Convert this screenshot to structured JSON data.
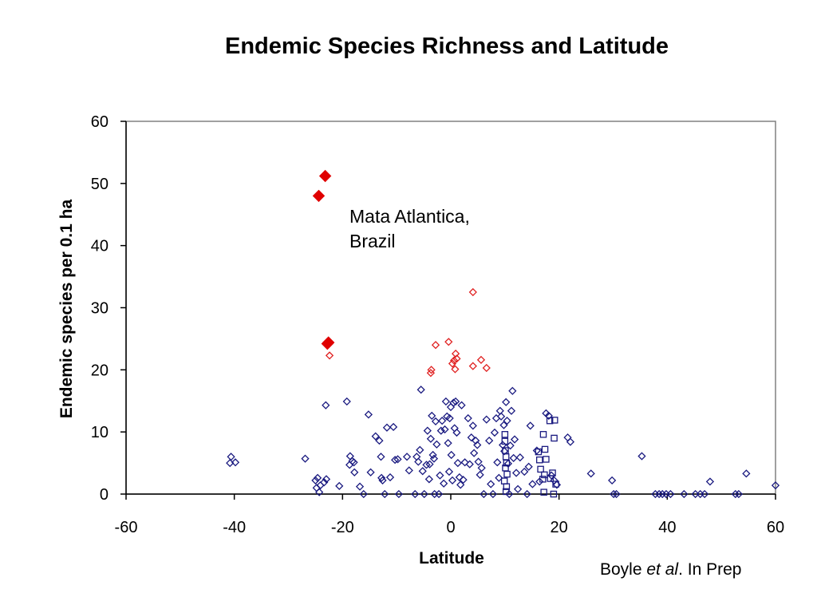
{
  "chart_data": {
    "type": "scatter",
    "title": "Endemic Species Richness and Latitude",
    "xlabel": "Latitude",
    "ylabel": "Endemic species per 0.1 ha",
    "xlim": [
      -60,
      60
    ],
    "ylim": [
      0,
      60
    ],
    "x_ticks": [
      "-60",
      "-40",
      "-20",
      "0",
      "20",
      "40",
      "60"
    ],
    "y_ticks": [
      "0",
      "10",
      "20",
      "30",
      "40",
      "50",
      "60"
    ],
    "grid": false,
    "legend": "none",
    "annotation": [
      "Mata Atlantica,",
      "Brazil"
    ],
    "credit": {
      "author": "Boyle",
      "etal": "et al",
      "rest": ". In Prep"
    },
    "colors": {
      "highlight": "#e00000",
      "blue": "#1a1a80",
      "red": "#e02020",
      "axis": "#000000",
      "frame": "#808080"
    },
    "series": [
      {
        "marker": "diamond-filled",
        "color": "#e00000",
        "points": [
          [
            -23.2,
            51.2
          ],
          [
            -24.4,
            48.0
          ],
          [
            -22.8,
            24.2
          ],
          [
            -22.6,
            24.4
          ]
        ]
      },
      {
        "marker": "diamond-open",
        "color": "#e02020",
        "points": [
          [
            -22.4,
            22.3
          ],
          [
            -3.7,
            19.5
          ],
          [
            -3.6,
            20.0
          ],
          [
            -2.8,
            24.0
          ],
          [
            -0.4,
            24.5
          ],
          [
            0.3,
            21.0
          ],
          [
            0.6,
            21.5
          ],
          [
            0.9,
            22.6
          ],
          [
            1.1,
            21.8
          ],
          [
            0.8,
            20.1
          ],
          [
            4.1,
            20.6
          ],
          [
            5.6,
            21.6
          ],
          [
            6.6,
            20.3
          ],
          [
            4.1,
            32.5
          ]
        ]
      },
      {
        "marker": "square-open",
        "color": "#1a1a80",
        "points": [
          [
            10.0,
            9.6
          ],
          [
            10.0,
            8.5
          ],
          [
            10.1,
            7.0
          ],
          [
            10.2,
            6.0
          ],
          [
            10.3,
            5.0
          ],
          [
            10.1,
            4.2
          ],
          [
            10.4,
            3.2
          ],
          [
            9.9,
            2.1
          ],
          [
            10.3,
            1.2
          ],
          [
            10.2,
            0.4
          ],
          [
            16.2,
            6.8
          ],
          [
            16.4,
            5.5
          ],
          [
            16.6,
            4.0
          ],
          [
            17.1,
            9.6
          ],
          [
            17.4,
            7.2
          ],
          [
            17.6,
            5.6
          ],
          [
            17.3,
            3.1
          ],
          [
            17.0,
            2.4
          ],
          [
            17.2,
            0.3
          ],
          [
            18.3,
            11.8
          ],
          [
            19.2,
            11.9
          ],
          [
            19.1,
            9.0
          ],
          [
            18.8,
            3.4
          ],
          [
            18.4,
            2.5
          ],
          [
            19.4,
            1.6
          ],
          [
            19.0,
            0.0
          ]
        ]
      },
      {
        "marker": "diamond-open",
        "color": "#1a1a80",
        "points": [
          [
            -40.6,
            6.0
          ],
          [
            -40.8,
            5.0
          ],
          [
            -39.8,
            5.1
          ],
          [
            -26.9,
            5.7
          ],
          [
            -25.0,
            2.2
          ],
          [
            -24.6,
            2.6
          ],
          [
            -24.8,
            1.0
          ],
          [
            -24.1,
            1.4
          ],
          [
            -24.3,
            0.3
          ],
          [
            -23.4,
            1.9
          ],
          [
            -23.1,
            14.3
          ],
          [
            -23.0,
            2.4
          ],
          [
            -20.6,
            1.3
          ],
          [
            -19.2,
            14.9
          ],
          [
            -18.6,
            6.1
          ],
          [
            -18.7,
            4.7
          ],
          [
            -17.9,
            5.1
          ],
          [
            -18.2,
            5.3
          ],
          [
            -17.8,
            3.5
          ],
          [
            -16.8,
            1.2
          ],
          [
            -16.1,
            0.0
          ],
          [
            -15.2,
            12.8
          ],
          [
            -14.8,
            3.5
          ],
          [
            -13.9,
            9.3
          ],
          [
            -13.2,
            8.6
          ],
          [
            -12.9,
            6.0
          ],
          [
            -12.8,
            2.6
          ],
          [
            -12.6,
            2.2
          ],
          [
            -12.2,
            0.0
          ],
          [
            -11.8,
            10.7
          ],
          [
            -11.2,
            2.7
          ],
          [
            -10.6,
            10.8
          ],
          [
            -10.3,
            5.5
          ],
          [
            -9.8,
            5.6
          ],
          [
            -9.6,
            0.0
          ],
          [
            -8.1,
            6.0
          ],
          [
            -7.7,
            3.8
          ],
          [
            -6.6,
            0.0
          ],
          [
            -6.3,
            6.0
          ],
          [
            -6.0,
            5.2
          ],
          [
            -5.7,
            7.1
          ],
          [
            -5.5,
            16.8
          ],
          [
            -5.2,
            3.7
          ],
          [
            -4.9,
            0.0
          ],
          [
            -4.5,
            4.7
          ],
          [
            -4.3,
            10.2
          ],
          [
            -4.0,
            2.4
          ],
          [
            -3.9,
            4.8
          ],
          [
            -3.7,
            8.9
          ],
          [
            -3.5,
            12.6
          ],
          [
            -3.3,
            6.3
          ],
          [
            -3.1,
            5.7
          ],
          [
            -3.0,
            0.0
          ],
          [
            -2.8,
            11.7
          ],
          [
            -2.6,
            8.0
          ],
          [
            -2.2,
            0.0
          ],
          [
            -2.0,
            3.0
          ],
          [
            -1.8,
            10.2
          ],
          [
            -1.6,
            11.8
          ],
          [
            -1.3,
            1.7
          ],
          [
            -1.1,
            10.4
          ],
          [
            -0.9,
            14.9
          ],
          [
            -0.7,
            12.5
          ],
          [
            -0.5,
            8.2
          ],
          [
            -0.3,
            3.6
          ],
          [
            -0.2,
            12.2
          ],
          [
            0.0,
            14.0
          ],
          [
            0.1,
            6.3
          ],
          [
            0.3,
            2.2
          ],
          [
            0.5,
            14.7
          ],
          [
            0.7,
            10.6
          ],
          [
            0.9,
            14.9
          ],
          [
            1.1,
            9.9
          ],
          [
            1.3,
            5.0
          ],
          [
            1.6,
            2.7
          ],
          [
            1.8,
            1.5
          ],
          [
            2.0,
            14.3
          ],
          [
            2.3,
            2.3
          ],
          [
            2.6,
            5.1
          ],
          [
            3.2,
            12.2
          ],
          [
            3.5,
            4.8
          ],
          [
            3.8,
            9.1
          ],
          [
            4.1,
            11.0
          ],
          [
            4.3,
            6.6
          ],
          [
            4.6,
            8.6
          ],
          [
            4.9,
            7.9
          ],
          [
            5.1,
            5.2
          ],
          [
            5.4,
            3.1
          ],
          [
            5.7,
            4.2
          ],
          [
            6.1,
            0.0
          ],
          [
            6.6,
            12.0
          ],
          [
            7.1,
            8.6
          ],
          [
            7.4,
            1.6
          ],
          [
            7.8,
            0.0
          ],
          [
            8.1,
            9.9
          ],
          [
            8.4,
            12.2
          ],
          [
            8.6,
            5.1
          ],
          [
            8.9,
            2.6
          ],
          [
            9.1,
            13.4
          ],
          [
            9.3,
            12.5
          ],
          [
            9.6,
            7.9
          ],
          [
            9.8,
            11.1
          ],
          [
            9.9,
            6.9
          ],
          [
            10.2,
            14.8
          ],
          [
            10.4,
            11.8
          ],
          [
            10.6,
            4.9
          ],
          [
            10.8,
            0.0
          ],
          [
            11.0,
            7.8
          ],
          [
            11.2,
            13.4
          ],
          [
            11.4,
            16.6
          ],
          [
            11.6,
            5.8
          ],
          [
            11.8,
            8.8
          ],
          [
            12.1,
            3.4
          ],
          [
            12.4,
            0.8
          ],
          [
            12.8,
            5.9
          ],
          [
            13.6,
            3.6
          ],
          [
            14.1,
            0.0
          ],
          [
            14.4,
            4.4
          ],
          [
            14.7,
            11.0
          ],
          [
            15.1,
            1.6
          ],
          [
            15.9,
            7.0
          ],
          [
            16.4,
            2.0
          ],
          [
            17.6,
            13.0
          ],
          [
            18.1,
            12.6
          ],
          [
            18.6,
            3.0
          ],
          [
            19.1,
            2.2
          ],
          [
            19.6,
            1.5
          ],
          [
            21.6,
            9.1
          ],
          [
            22.1,
            8.4
          ],
          [
            25.9,
            3.3
          ],
          [
            29.8,
            2.2
          ],
          [
            30.1,
            0.0
          ],
          [
            30.6,
            0.0
          ],
          [
            35.3,
            6.1
          ],
          [
            37.8,
            0.0
          ],
          [
            38.5,
            0.0
          ],
          [
            39.1,
            0.0
          ],
          [
            39.8,
            0.0
          ],
          [
            40.6,
            0.0
          ],
          [
            43.1,
            0.0
          ],
          [
            45.2,
            0.0
          ],
          [
            46.1,
            0.0
          ],
          [
            46.9,
            0.0
          ],
          [
            47.9,
            2.0
          ],
          [
            52.6,
            0.0
          ],
          [
            53.2,
            0.0
          ],
          [
            54.6,
            3.3
          ],
          [
            60.0,
            1.4
          ]
        ]
      }
    ]
  }
}
